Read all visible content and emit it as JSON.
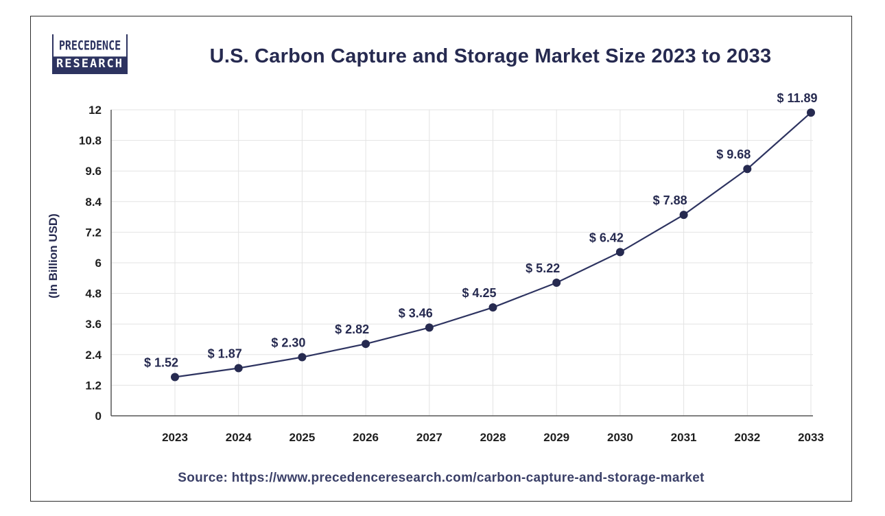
{
  "logo": {
    "line1": "PRECEDENCE",
    "line2": "RESEARCH"
  },
  "source": "Source: https://www.precedenceresearch.com/carbon-capture-and-storage-market",
  "colors": {
    "line": "#2d3360",
    "marker": "#262a50",
    "grid": "#e3e3e3",
    "axis": "#555555"
  },
  "chart_data": {
    "type": "line",
    "title": "U.S. Carbon Capture and Storage Market Size 2023 to 2033",
    "xlabel": "",
    "ylabel": "(In Billion USD)",
    "categories": [
      "2023",
      "2024",
      "2025",
      "2026",
      "2027",
      "2028",
      "2029",
      "2030",
      "2031",
      "2032",
      "2033"
    ],
    "series": [
      {
        "name": "U.S. Carbon Capture and Storage Market Size",
        "values": [
          1.52,
          1.87,
          2.3,
          2.82,
          3.46,
          4.25,
          5.22,
          6.42,
          7.88,
          9.68,
          11.89
        ],
        "labels": [
          "$ 1.52",
          "$ 1.87",
          "$ 2.30",
          "$ 2.82",
          "$ 3.46",
          "$ 4.25",
          "$ 5.22",
          "$ 6.42",
          "$ 7.88",
          "$ 9.68",
          "$ 11.89"
        ]
      }
    ],
    "yticks": [
      0,
      1.2,
      2.4,
      3.6,
      4.8,
      6,
      7.2,
      8.4,
      9.6,
      10.8,
      12
    ],
    "ylim": [
      0,
      12
    ],
    "grid": true,
    "legend": "none"
  }
}
